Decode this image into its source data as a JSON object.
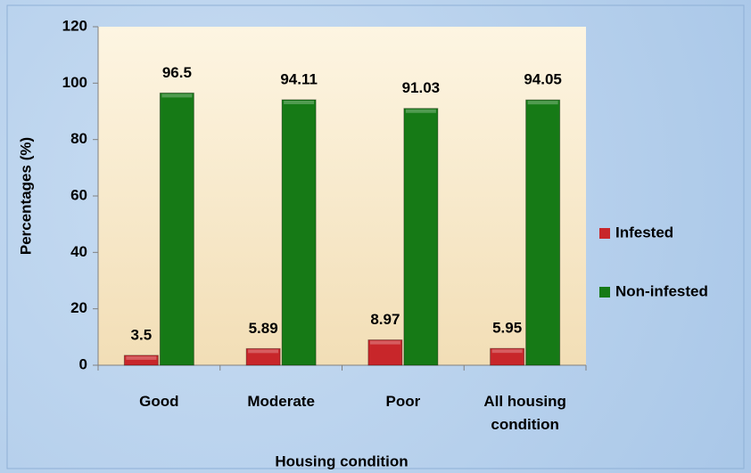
{
  "chart_data": {
    "type": "bar",
    "x_label": "Housing condition",
    "y_label": "Percentages (%)",
    "categories": [
      "Good",
      "Moderate",
      "Poor",
      "All housing condition"
    ],
    "series": [
      {
        "name": "Infested",
        "color": "#c8262a",
        "values": [
          3.5,
          5.89,
          8.97,
          5.95
        ]
      },
      {
        "name": "Non-infested",
        "color": "#167a16",
        "values": [
          96.5,
          94.11,
          91.03,
          94.05
        ]
      }
    ],
    "ylim": [
      0,
      120
    ],
    "yticks": [
      0,
      20,
      40,
      60,
      80,
      100,
      120
    ],
    "legend": "right"
  }
}
